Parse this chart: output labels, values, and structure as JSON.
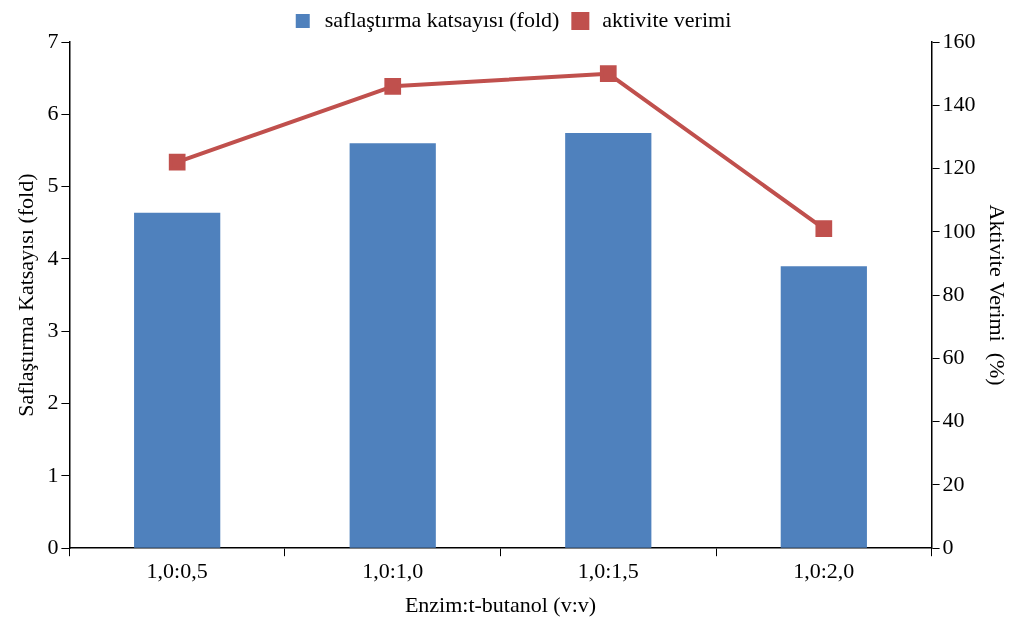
{
  "chart_data": {
    "type": "bar",
    "xlabel": "Enzim:t-butanol (v:v)",
    "ylabel": "Saflaştırma Katsayısı (fold)",
    "y2label": "Aktivite Verimi  (%)",
    "categories": [
      "1,0:0,5",
      "1,0:1,0",
      "1,0:1,5",
      "1,0:2,0"
    ],
    "series": [
      {
        "name": "saflaştırma katsayısı (fold)",
        "color": "#4f81bd",
        "values": [
          4.64,
          5.6,
          5.74,
          3.9
        ]
      },
      {
        "name": "aktivite verimi",
        "type": "line",
        "axis": "y2",
        "color": "#c0504d",
        "marker": "square",
        "values": [
          122,
          146,
          150,
          101
        ]
      }
    ],
    "ylim": [
      0,
      7
    ],
    "yticks": [
      0,
      1,
      2,
      3,
      4,
      5,
      6,
      7
    ],
    "y2lim": [
      0,
      160
    ],
    "y2ticks": [
      0,
      20,
      40,
      60,
      80,
      100,
      120,
      140,
      160
    ],
    "grid": false,
    "legend": "top"
  }
}
